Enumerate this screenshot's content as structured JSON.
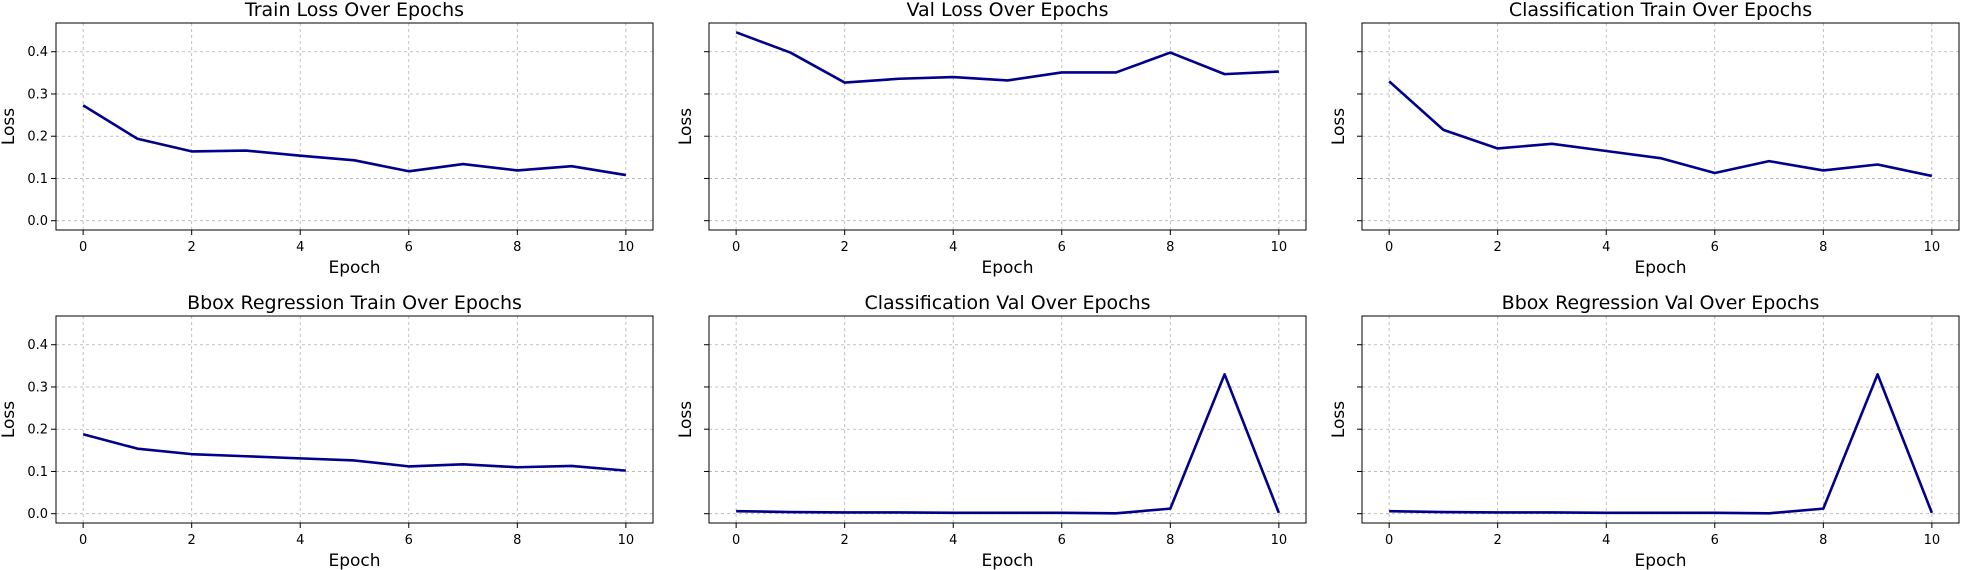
{
  "chart_data": [
    {
      "type": "line",
      "title": "Train Loss Over Epochs",
      "xlabel": "Epoch",
      "ylabel": "Loss",
      "x": [
        0,
        1,
        2,
        3,
        4,
        5,
        6,
        7,
        8,
        9,
        10
      ],
      "series": [
        {
          "values": [
            0.273,
            0.194,
            0.164,
            0.166,
            0.154,
            0.143,
            0.117,
            0.134,
            0.119,
            0.129,
            0.108
          ]
        }
      ],
      "xticks": [
        "0",
        "2",
        "4",
        "6",
        "8",
        "10"
      ],
      "yticks": [
        "0.0",
        "0.1",
        "0.2",
        "0.3",
        "0.4"
      ],
      "ytick_labels_visible": true,
      "xlim": [
        -0.5,
        10.5
      ],
      "ylim": [
        -0.022,
        0.468
      ],
      "grid": true,
      "color": "#00008b"
    },
    {
      "type": "line",
      "title": "Val Loss Over Epochs",
      "xlabel": "Epoch",
      "ylabel": "Loss",
      "x": [
        0,
        1,
        2,
        3,
        4,
        5,
        6,
        7,
        8,
        9,
        10
      ],
      "series": [
        {
          "values": [
            0.446,
            0.398,
            0.327,
            0.336,
            0.34,
            0.332,
            0.351,
            0.351,
            0.398,
            0.347,
            0.353
          ]
        }
      ],
      "xticks": [
        "0",
        "2",
        "4",
        "6",
        "8",
        "10"
      ],
      "yticks": [
        "0.0",
        "0.1",
        "0.2",
        "0.3",
        "0.4"
      ],
      "ytick_labels_visible": false,
      "xlim": [
        -0.5,
        10.5
      ],
      "ylim": [
        -0.022,
        0.468
      ],
      "grid": true,
      "color": "#00008b"
    },
    {
      "type": "line",
      "title": "Classification Train Over Epochs",
      "xlabel": "Epoch",
      "ylabel": "Loss",
      "x": [
        0,
        1,
        2,
        3,
        4,
        5,
        6,
        7,
        8,
        9,
        10
      ],
      "series": [
        {
          "values": [
            0.33,
            0.215,
            0.171,
            0.182,
            0.165,
            0.148,
            0.113,
            0.141,
            0.119,
            0.133,
            0.106
          ]
        }
      ],
      "xticks": [
        "0",
        "2",
        "4",
        "6",
        "8",
        "10"
      ],
      "yticks": [
        "0.0",
        "0.1",
        "0.2",
        "0.3",
        "0.4"
      ],
      "ytick_labels_visible": false,
      "xlim": [
        -0.5,
        10.5
      ],
      "ylim": [
        -0.022,
        0.468
      ],
      "grid": true,
      "color": "#00008b"
    },
    {
      "type": "line",
      "title": "Bbox Regression Train Over Epochs",
      "xlabel": "Epoch",
      "ylabel": "Loss",
      "x": [
        0,
        1,
        2,
        3,
        4,
        5,
        6,
        7,
        8,
        9,
        10
      ],
      "series": [
        {
          "values": [
            0.188,
            0.154,
            0.141,
            0.136,
            0.131,
            0.126,
            0.112,
            0.117,
            0.11,
            0.113,
            0.102
          ]
        }
      ],
      "xticks": [
        "0",
        "2",
        "4",
        "6",
        "8",
        "10"
      ],
      "yticks": [
        "0.0",
        "0.1",
        "0.2",
        "0.3",
        "0.4"
      ],
      "ytick_labels_visible": true,
      "xlim": [
        -0.5,
        10.5
      ],
      "ylim": [
        -0.022,
        0.468
      ],
      "grid": true,
      "color": "#00008b"
    },
    {
      "type": "line",
      "title": "Classification Val Over Epochs",
      "xlabel": "Epoch",
      "ylabel": "Loss",
      "x": [
        0,
        1,
        2,
        3,
        4,
        5,
        6,
        7,
        8,
        9,
        10
      ],
      "series": [
        {
          "values": [
            0.006,
            0.004,
            0.003,
            0.003,
            0.002,
            0.002,
            0.002,
            0.001,
            0.012,
            0.33,
            0.002
          ]
        }
      ],
      "xticks": [
        "0",
        "2",
        "4",
        "6",
        "8",
        "10"
      ],
      "yticks": [
        "0.0",
        "0.1",
        "0.2",
        "0.3",
        "0.4"
      ],
      "ytick_labels_visible": false,
      "xlim": [
        -0.5,
        10.5
      ],
      "ylim": [
        -0.022,
        0.468
      ],
      "grid": true,
      "color": "#00008b"
    },
    {
      "type": "line",
      "title": "Bbox Regression Val Over Epochs",
      "xlabel": "Epoch",
      "ylabel": "Loss",
      "x": [
        0,
        1,
        2,
        3,
        4,
        5,
        6,
        7,
        8,
        9,
        10
      ],
      "series": [
        {
          "values": [
            0.006,
            0.004,
            0.003,
            0.003,
            0.002,
            0.002,
            0.002,
            0.001,
            0.012,
            0.33,
            0.002
          ]
        }
      ],
      "xticks": [
        "0",
        "2",
        "4",
        "6",
        "8",
        "10"
      ],
      "yticks": [
        "0.0",
        "0.1",
        "0.2",
        "0.3",
        "0.4"
      ],
      "ytick_labels_visible": false,
      "xlim": [
        -0.5,
        10.5
      ],
      "ylim": [
        -0.022,
        0.468
      ],
      "grid": true,
      "color": "#00008b"
    }
  ]
}
